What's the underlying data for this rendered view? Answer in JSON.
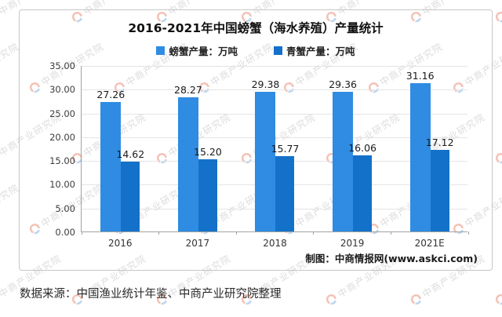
{
  "page": {
    "source_note": "数据来源：中国渔业统计年鉴、中商产业研究院整理",
    "watermark_text": "中商产业研究院",
    "watermark_logo_colors": {
      "arc_top": "#e4694a",
      "arc_bottom": "#5b9bd8"
    }
  },
  "card": {
    "title": "2016-2021年中国螃蟹（海水养殖）产量统计",
    "credit": "制图：中商情报网(www.askci.com)"
  },
  "colors": {
    "series1": "#2f8ce2",
    "series2": "#1371c9",
    "gridline": "#e4e4e4",
    "axis": "#a2a2a2"
  },
  "chart_data": {
    "type": "bar",
    "title": "2016-2021年中国螃蟹（海水养殖）产量统计",
    "categories": [
      "2016",
      "2017",
      "2018",
      "2019",
      "2021E"
    ],
    "series": [
      {
        "name": "螃蟹产量：万吨",
        "color": "#2f8ce2",
        "values": [
          27.26,
          28.27,
          29.38,
          29.36,
          31.16
        ]
      },
      {
        "name": "青蟹产量：万吨",
        "color": "#1371c9",
        "values": [
          14.62,
          15.2,
          15.77,
          16.06,
          17.12
        ]
      }
    ],
    "ylim": [
      0,
      35
    ],
    "ytick_step": 5,
    "ytick_labels": [
      "35.00",
      "30.00",
      "25.00",
      "20.00",
      "15.00",
      "10.00",
      "5.00",
      "0.00"
    ],
    "value_label_decimals": 2,
    "grid": true,
    "legend_position": "top"
  }
}
